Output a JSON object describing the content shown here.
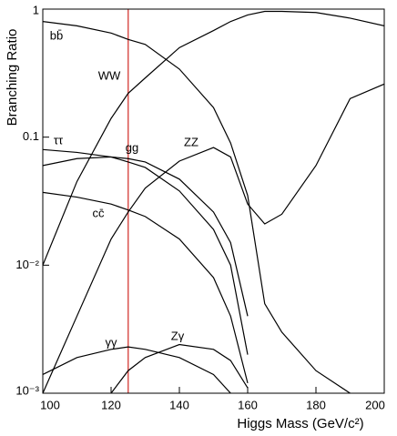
{
  "chart_data": {
    "type": "line",
    "xlabel": "Higgs Mass (GeV/c²)",
    "ylabel": "Branching Ratio",
    "log_y": true,
    "x": [
      100,
      110,
      120,
      125,
      130,
      140,
      150,
      155,
      160,
      165,
      170,
      180,
      190,
      200
    ],
    "xlim": [
      100,
      200
    ],
    "xticks": [
      100,
      120,
      140,
      160,
      180,
      200
    ],
    "ylim": [
      0.001,
      1
    ],
    "yticks": [
      1,
      0.1,
      {
        "value": 0.01,
        "label": "10⁻²"
      },
      {
        "value": 0.001,
        "label": "10⁻³"
      }
    ],
    "marker_x": 125,
    "marker_color": "#d9534f",
    "series": [
      {
        "name": "bb̄",
        "color": "#000000",
        "values": [
          0.8,
          0.74,
          0.65,
          0.58,
          0.53,
          0.34,
          0.17,
          0.09,
          0.035,
          0.005,
          0.003,
          0.0015,
          0.001,
          null
        ]
      },
      {
        "name": "WW",
        "color": "#000000",
        "values": [
          0.01,
          0.045,
          0.14,
          0.22,
          0.29,
          0.5,
          0.68,
          0.8,
          0.9,
          0.96,
          0.96,
          0.94,
          0.85,
          0.74
        ]
      },
      {
        "name": "ττ",
        "color": "#000000",
        "values": [
          0.08,
          0.076,
          0.07,
          0.064,
          0.058,
          0.038,
          0.019,
          0.01,
          0.002,
          null,
          null,
          null,
          null,
          null
        ]
      },
      {
        "name": "gg",
        "color": "#000000",
        "values": [
          0.06,
          0.068,
          0.07,
          0.068,
          0.064,
          0.047,
          0.026,
          0.015,
          0.004,
          null,
          null,
          null,
          null,
          null
        ]
      },
      {
        "name": "ZZ",
        "color": "#000000",
        "values": [
          0.001,
          0.004,
          0.016,
          0.026,
          0.04,
          0.065,
          0.083,
          0.07,
          0.03,
          0.021,
          0.025,
          0.06,
          0.2,
          0.26
        ]
      },
      {
        "name": "cc̄",
        "color": "#000000",
        "values": [
          0.037,
          0.034,
          0.03,
          0.027,
          0.024,
          0.016,
          0.008,
          0.004,
          0.0012,
          null,
          null,
          null,
          null,
          null
        ]
      },
      {
        "name": "γγ",
        "color": "#000000",
        "values": [
          0.0014,
          0.0019,
          0.0022,
          0.0023,
          0.0022,
          0.0019,
          0.0014,
          0.001,
          null,
          null,
          null,
          null,
          null,
          null
        ]
      },
      {
        "name": "Zγ",
        "color": "#000000",
        "values": [
          null,
          null,
          0.001,
          0.0015,
          0.0019,
          0.0024,
          0.0022,
          0.0018,
          0.0011,
          null,
          null,
          null,
          null,
          null
        ]
      }
    ]
  }
}
